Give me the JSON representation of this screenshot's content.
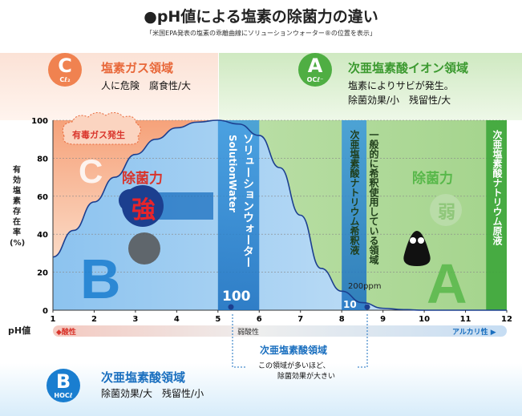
{
  "title": "●pH値による塩素の除菌力の違い",
  "subtitle": "「米国EPA発表の塩素の乖離曲線にソリューションウォーター®の位置を表示」",
  "zones": {
    "c": {
      "letter": "C",
      "formula": "Cℓ₂",
      "title": "塩素ガス領域",
      "desc": "人に危険　腐食性/大",
      "color": "#f08250"
    },
    "a": {
      "letter": "A",
      "formula": "OCℓ⁻",
      "title": "次亜塩素酸イオン領域",
      "desc1": "塩素によりサビが発生。",
      "desc2": "除菌効果/小　残留性/大",
      "color": "#58b84a"
    },
    "b": {
      "letter": "B",
      "formula": "HOCℓ",
      "title": "次亜塩素酸領域",
      "desc": "除菌効果/大　残留性/小",
      "color": "#1a7ed0"
    }
  },
  "y_axis_label": [
    "有",
    "効",
    "塩",
    "素",
    "存",
    "在",
    "率",
    "(%)"
  ],
  "x_axis_label": "pH値",
  "scale_labels": {
    "acid": "◆酸性",
    "weak_acid": "弱酸性",
    "alkaline": "アルカリ性 ▶"
  },
  "annotations": {
    "gas": "有毒ガス発生",
    "power_label_left": "除菌力",
    "power_strong": "強",
    "power_label_right": "除菌力",
    "power_weak": "弱",
    "solution_band": "ソリューションウォーター",
    "solution_band_en": "SolutionWater",
    "solution_value": "100",
    "dilute_band_1": "一般的に希釈使用している領域",
    "dilute_band_2": "次亜塩素酸ナトリウム希釈液",
    "dilute_ppm": "200ppm",
    "dilute_value": "10",
    "stock_band": "次亜塩素酸ナトリウム原液",
    "bottom_title": "次亜塩素酸領域",
    "bottom_note_1": "この領域が多いほど、",
    "bottom_note_2": "除菌効果が大きい"
  },
  "chart_data": {
    "type": "line",
    "xlabel": "pH値",
    "ylabel": "有効塩素存在率(%)",
    "xlim": [
      1,
      12
    ],
    "ylim": [
      0,
      100
    ],
    "x_ticks": [
      1,
      2,
      3,
      4,
      5,
      6,
      7,
      8,
      9,
      10,
      11,
      12
    ],
    "y_ticks": [
      0,
      20,
      40,
      60,
      80,
      100
    ],
    "series": [
      {
        "x": [
          1,
          1.5,
          2,
          2.5,
          3,
          3.5,
          4,
          4.5,
          5,
          5.5,
          6,
          6.5,
          7,
          7.5,
          8,
          8.5,
          9,
          9.5,
          10
        ],
        "values": [
          28,
          42,
          57,
          70,
          82,
          90,
          96,
          99,
          100,
          98,
          92,
          75,
          50,
          22,
          10,
          4,
          1,
          0.3,
          0
        ]
      }
    ],
    "bands": [
      {
        "x": [
          5.0,
          6.0
        ],
        "value": "100"
      },
      {
        "x": [
          8.0,
          8.6
        ],
        "value": "10"
      },
      {
        "x": [
          11.5,
          12.0
        ]
      }
    ]
  }
}
